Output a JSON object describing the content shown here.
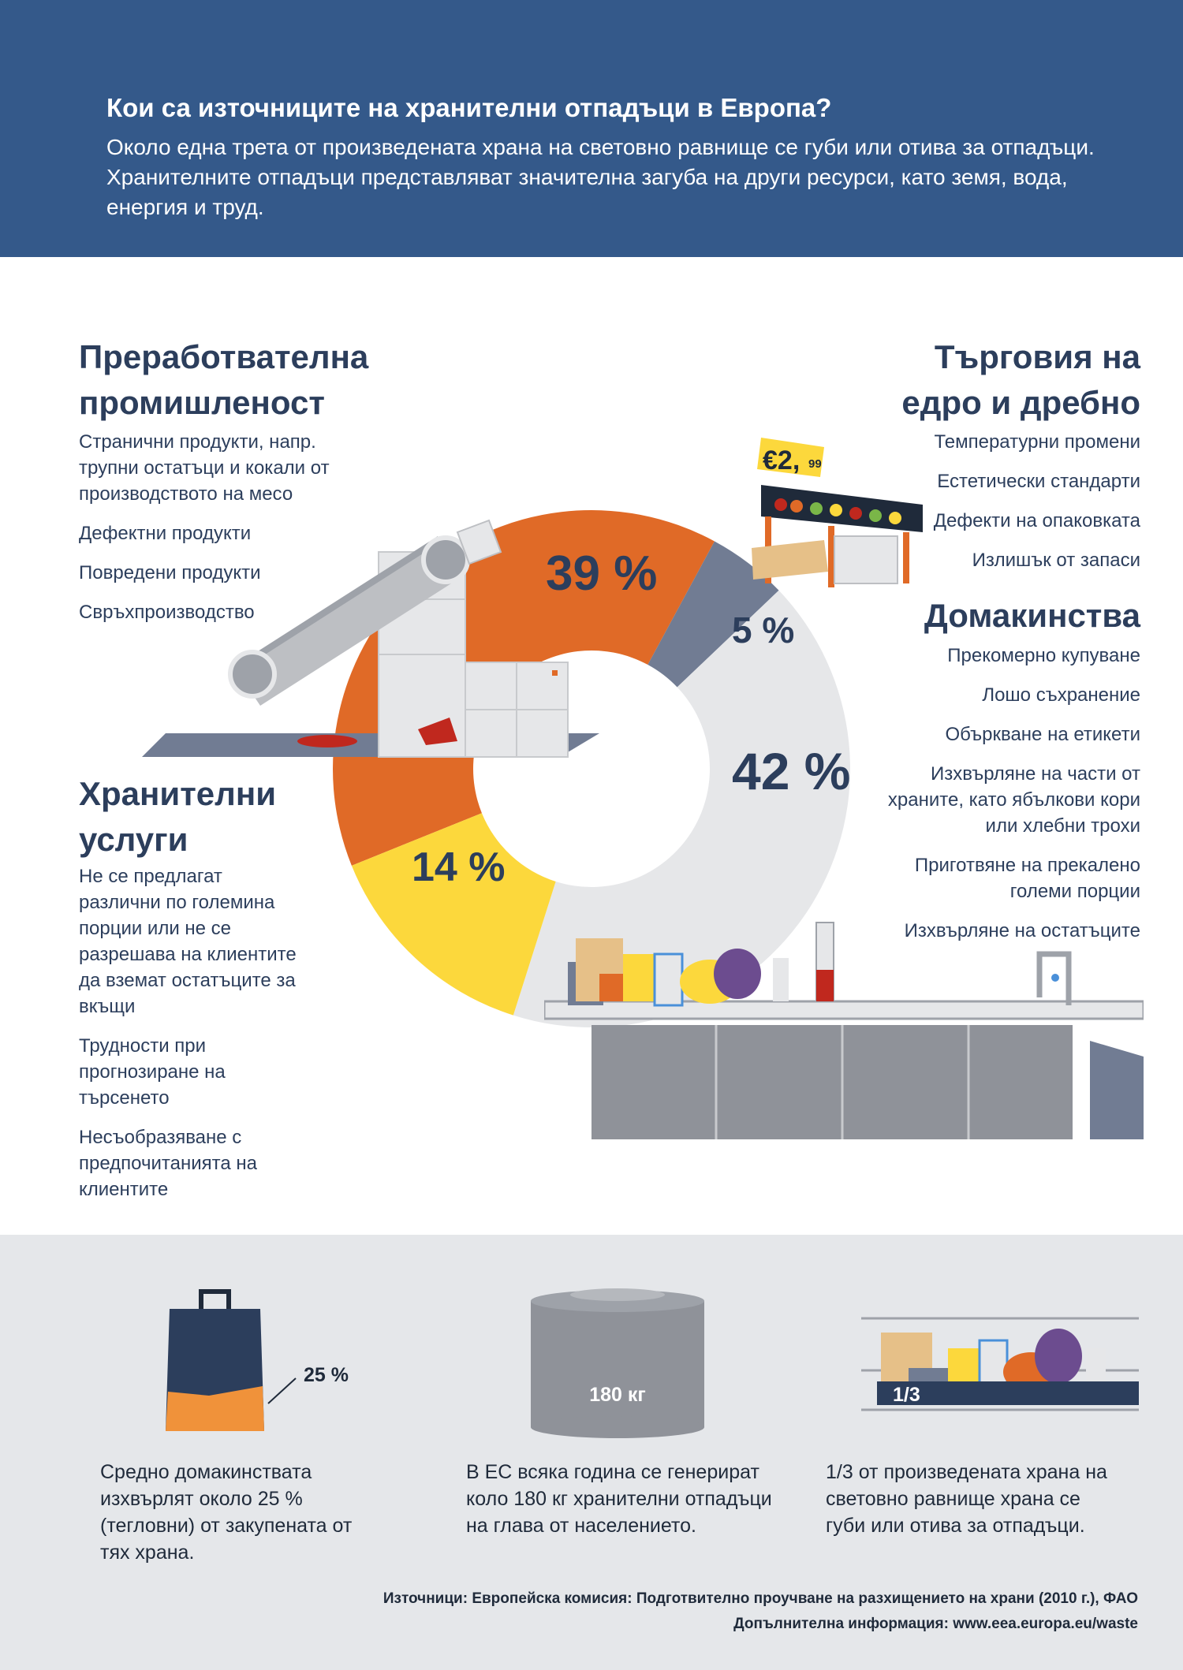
{
  "header": {
    "title": "Кои са източниците на хранителни отпадъци в Европа?",
    "intro": "Около една трета от произведената храна на световно равнище се губи или отива за отпадъци. Хранителните отпадъци представляват значителна загуба на други ресурси, като земя, вода, енергия и труд."
  },
  "categories": {
    "processing": {
      "title_line1": "Преработвателна",
      "title_line2": "промишленост",
      "items": [
        "Странични продукти, напр. трупни остатъци и кокали от производството на месо",
        "Дефектни продукти",
        "Повредени продукти",
        "Свръхпроизводство"
      ]
    },
    "retail": {
      "title_line1": "Търговия на",
      "title_line2": "едро и дребно",
      "items": [
        "Температурни промени",
        "Естетически стандарти",
        "Дефекти на опаковката",
        "Излишък от запаси"
      ]
    },
    "households": {
      "title": "Домакинства",
      "items": [
        "Прекомерно купуване",
        "Лошо съхранение",
        "Объркване на етикети",
        "Изхвърляне на части от храните, като ябълкови кори или хлебни трохи",
        "Приготвяне на прекалено големи порции",
        "Изхвърляне на остатъците"
      ]
    },
    "food_services": {
      "title_line1": "Хранителни",
      "title_line2": "услуги",
      "items": [
        "Не се предлагат различни по големина порции или не се разрешава на клиентите да вземат остатъците за вкъщи",
        "Трудности при прогнозиране на търсенето",
        "Несъобразяване с предпочитанията на клиентите"
      ]
    }
  },
  "chart_data": {
    "type": "pie",
    "title": "",
    "slices": [
      {
        "name": "Преработвателна промишленост",
        "value": 39,
        "label": "39 %",
        "color": "#e06a27"
      },
      {
        "name": "Търговия на едро и дребно",
        "value": 5,
        "label": "5 %",
        "color": "#717c93"
      },
      {
        "name": "Домакинства",
        "value": 42,
        "label": "42 %",
        "color": "#e6e7e9"
      },
      {
        "name": "Хранителни услуги",
        "value": 14,
        "label": "14 %",
        "color": "#fcd83c"
      }
    ]
  },
  "price_tag": {
    "currency_amount": "€2,",
    "cents": "99"
  },
  "stats": [
    {
      "figure": "25 %",
      "text": "Средно домакинствата изхвърлят около 25 % (тегловни) от закупената от тях храна.",
      "icon": "shopping-bag-icon"
    },
    {
      "figure": "180 кг",
      "text": "В ЕС всяка година се генерират коло 180 кг хранителни отпадъци на глава от населението.",
      "icon": "cylinder-icon"
    },
    {
      "figure": "1/3",
      "text": "1/3 от произведената храна на световно равнище храна се губи или отива за отпадъци.",
      "icon": "groceries-icon"
    }
  ],
  "sources": {
    "line1": "Източници: Европейска комисия: Подготвително проучване на разхищението на храни (2010 г.), ФАО",
    "line2": "Допълнителна информация: www.eea.europa.eu/waste"
  },
  "colors": {
    "header_bg": "#34598a",
    "text_dark": "#2c3e5c",
    "footer_bg": "#e5e7ea",
    "orange": "#e06a27",
    "slate": "#717c93",
    "light_grey": "#e6e7e9",
    "yellow": "#fcd83c"
  }
}
